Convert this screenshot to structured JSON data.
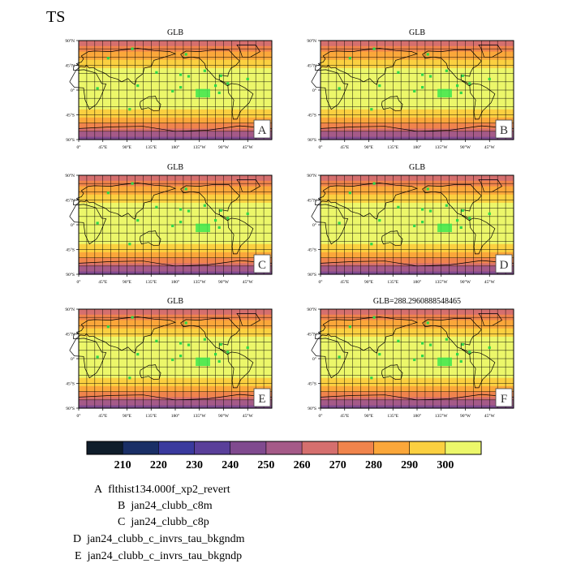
{
  "page": {
    "title": "TS"
  },
  "chart_data": {
    "type": "heatmap",
    "variable": "TS",
    "panels": [
      {
        "letter": "A",
        "title": "GLB"
      },
      {
        "letter": "B",
        "title": "GLB"
      },
      {
        "letter": "C",
        "title": "GLB"
      },
      {
        "letter": "D",
        "title": "GLB"
      },
      {
        "letter": "E",
        "title": "GLB"
      },
      {
        "letter": "F",
        "title": "GLB=288.2960888548465"
      }
    ],
    "x_ticks": [
      "0°",
      "45°E",
      "90°E",
      "135°E",
      "180°",
      "135°W",
      "90°W",
      "45°W"
    ],
    "y_ticks": [
      "90°N",
      "45°N",
      "0°",
      "45°S",
      "90°S"
    ],
    "colorbar": {
      "colors": [
        "#0f1d2b",
        "#1a2f66",
        "#3a3a9e",
        "#5a3f9a",
        "#804a8f",
        "#a55a88",
        "#d56f6e",
        "#f0844c",
        "#fba73a",
        "#fbd040",
        "#ecf76a"
      ],
      "labels": [
        "210",
        "220",
        "230",
        "240",
        "250",
        "260",
        "270",
        "280",
        "290",
        "300"
      ]
    },
    "cases": [
      {
        "letter": "A",
        "name": "flthist134.000f_xp2_revert"
      },
      {
        "letter": "B",
        "name": "jan24_clubb_c8m"
      },
      {
        "letter": "C",
        "name": "jan24_clubb_c8p"
      },
      {
        "letter": "D",
        "name": "jan24_clubb_c_invrs_tau_bkgndm"
      },
      {
        "letter": "E",
        "name": "jan24_clubb_c_invrs_tau_bkgndp"
      }
    ]
  }
}
